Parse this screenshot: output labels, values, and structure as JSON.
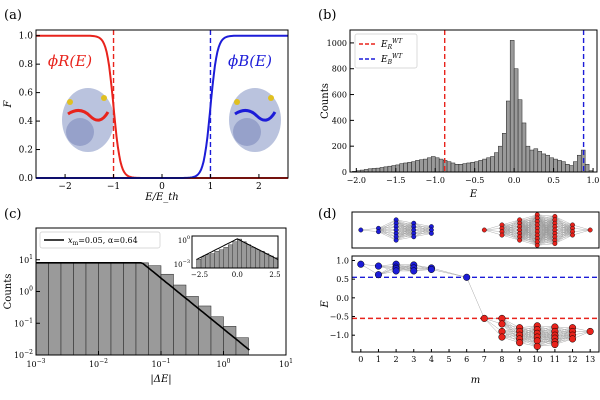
{
  "panel_labels": [
    "(a)",
    "(b)",
    "(c)",
    "(d)"
  ],
  "colors": {
    "red": "#e8231c",
    "blue": "#1c1cd8",
    "bar": "#9a9a9a",
    "mol": "#a9b4d6"
  },
  "chart_data": [
    {
      "id": "a",
      "type": "line",
      "xlabel": "E/E_th",
      "ylabel": "F",
      "xlim": [
        -2.6,
        2.6
      ],
      "ylim": [
        0,
        1.04
      ],
      "xticks": [
        -2,
        -1,
        0,
        1,
        2
      ],
      "yticks": [
        0.0,
        0.2,
        0.4,
        0.6,
        0.8,
        1.0
      ],
      "series": [
        {
          "name": "φ_R(E)",
          "label_text": "ϕR(E)",
          "color": "#e8231c",
          "x_switch": -1,
          "direction": "decreasing",
          "width": 0.07
        },
        {
          "name": "φ_B(E)",
          "label_text": "ϕB(E)",
          "color": "#1c1cd8",
          "x_switch": 1,
          "direction": "increasing",
          "width": 0.07
        }
      ],
      "vlines": [
        {
          "x": -1,
          "color": "#e8231c"
        },
        {
          "x": 1,
          "color": "#1c1cd8"
        }
      ]
    },
    {
      "id": "b",
      "type": "bar",
      "xlabel": "E",
      "ylabel": "Counts",
      "xlim": [
        -2.08,
        1.05
      ],
      "ylim": [
        0,
        1100
      ],
      "xticks": [
        -2.0,
        -1.5,
        -1.0,
        -0.5,
        0.0,
        0.5,
        1.0
      ],
      "yticks": [
        0,
        200,
        400,
        600,
        800,
        1000
      ],
      "bin_width": 0.05,
      "bin_starts": [
        -2.05,
        -2.0,
        -1.95,
        -1.9,
        -1.85,
        -1.8,
        -1.75,
        -1.7,
        -1.65,
        -1.6,
        -1.55,
        -1.5,
        -1.45,
        -1.4,
        -1.35,
        -1.3,
        -1.25,
        -1.2,
        -1.15,
        -1.1,
        -1.05,
        -1.0,
        -0.95,
        -0.9,
        -0.85,
        -0.8,
        -0.75,
        -0.7,
        -0.65,
        -0.6,
        -0.55,
        -0.5,
        -0.45,
        -0.4,
        -0.35,
        -0.3,
        -0.25,
        -0.2,
        -0.15,
        -0.1,
        -0.05,
        0.0,
        0.05,
        0.1,
        0.15,
        0.2,
        0.25,
        0.3,
        0.35,
        0.4,
        0.45,
        0.5,
        0.55,
        0.6,
        0.65,
        0.7,
        0.75,
        0.8,
        0.85,
        0.9,
        0.95
      ],
      "values": [
        5,
        10,
        15,
        20,
        25,
        28,
        30,
        35,
        40,
        45,
        50,
        55,
        65,
        70,
        75,
        80,
        90,
        95,
        100,
        110,
        120,
        110,
        100,
        90,
        80,
        70,
        60,
        60,
        65,
        70,
        75,
        80,
        90,
        100,
        110,
        120,
        150,
        200,
        300,
        550,
        1020,
        800,
        560,
        380,
        200,
        170,
        180,
        160,
        140,
        130,
        110,
        100,
        90,
        80,
        60,
        50,
        80,
        130,
        170,
        60,
        10
      ],
      "vlines": [
        {
          "x": -0.88,
          "color": "#e8231c",
          "label": "E_R^WT"
        },
        {
          "x": 0.88,
          "color": "#1c1cd8",
          "label": "E_B^WT"
        }
      ],
      "legend": {
        "labels": [
          "E",
          "R",
          "WT",
          "E",
          "B",
          "WT"
        ],
        "position": "top-left"
      }
    },
    {
      "id": "c",
      "type": "bar",
      "xlabel": "|ΔE|",
      "ylabel": "Counts",
      "xscale": "log",
      "yscale": "log",
      "xlim": [
        0.001,
        10
      ],
      "ylim": [
        0.01,
        100
      ],
      "xticks": [
        "10^-3",
        "10^-2",
        "10^-1",
        "10^0",
        "10^1"
      ],
      "yticks": [
        "10^-2",
        "10^-1",
        "10^0",
        "10^1"
      ],
      "bin_edges": [
        0.001,
        0.001585,
        0.002512,
        0.003981,
        0.00631,
        0.01,
        0.01585,
        0.02512,
        0.03981,
        0.0631,
        0.1,
        0.1585,
        0.2512,
        0.3981,
        0.631,
        1.0,
        1.585,
        2.512
      ],
      "values": [
        8,
        8,
        8,
        8,
        8,
        8,
        8,
        8,
        8,
        6.5,
        3.5,
        1.6,
        0.7,
        0.35,
        0.16,
        0.08,
        0.035
      ],
      "fit": {
        "xm": 0.05,
        "alpha": 0.64
      },
      "legend": {
        "labels": [
          "x",
          "m",
          "=0.05, α=0.64"
        ],
        "position": "top-left"
      },
      "inset": {
        "type": "bar",
        "xlim": [
          -3.0,
          2.7
        ],
        "xticks": [
          -2.5,
          0.0,
          2.5
        ],
        "yticks": [
          "10^0",
          "10^-3"
        ],
        "bin_starts": [
          -2.7,
          -2.4,
          -2.1,
          -1.8,
          -1.5,
          -1.2,
          -0.9,
          -0.6,
          -0.3,
          0.0,
          0.3,
          0.6,
          0.9,
          1.2,
          1.5,
          1.8,
          2.1,
          2.4
        ],
        "values": [
          0.004,
          0.008,
          0.015,
          0.02,
          0.04,
          0.06,
          0.12,
          0.25,
          0.6,
          1.3,
          0.6,
          0.25,
          0.12,
          0.06,
          0.04,
          0.02,
          0.01,
          0.006
        ]
      }
    },
    {
      "id": "d",
      "type": "scatter",
      "xlabel": "m",
      "ylabel": "E",
      "xlim": [
        -0.5,
        13.5
      ],
      "ylim": [
        -1.45,
        1.12
      ],
      "xticks": [
        0,
        1,
        2,
        3,
        4,
        5,
        6,
        7,
        8,
        9,
        10,
        11,
        12,
        13
      ],
      "yticks": [
        1.0,
        0.5,
        0.0,
        -0.5,
        -1.0
      ],
      "hlines": [
        {
          "y": 0.55,
          "color": "#1c1cd8"
        },
        {
          "y": -0.55,
          "color": "#e8231c"
        }
      ],
      "points": {
        "m": [
          0,
          1,
          1,
          2,
          2,
          2,
          2,
          3,
          3,
          3,
          4,
          4,
          6,
          7,
          8,
          8,
          8,
          8,
          9,
          9,
          9,
          9,
          9,
          10,
          10,
          10,
          10,
          10,
          10,
          11,
          11,
          11,
          11,
          11,
          11,
          12,
          12,
          12,
          12,
          13
        ],
        "E": [
          0.9,
          0.85,
          0.62,
          0.9,
          0.82,
          0.78,
          0.72,
          0.88,
          0.8,
          0.72,
          0.8,
          0.76,
          0.55,
          -0.55,
          -0.55,
          -0.7,
          -0.9,
          -1.05,
          -0.8,
          -0.9,
          -1.0,
          -1.1,
          -1.2,
          -0.75,
          -0.85,
          -0.95,
          -1.05,
          -1.15,
          -1.3,
          -0.78,
          -0.9,
          -1.0,
          -1.08,
          -1.18,
          -1.25,
          -0.8,
          -0.9,
          -1.0,
          -1.1,
          -0.9
        ],
        "group": [
          "B",
          "B",
          "B",
          "B",
          "B",
          "B",
          "B",
          "B",
          "B",
          "B",
          "B",
          "B",
          "B",
          "R",
          "R",
          "R",
          "R",
          "R",
          "R",
          "R",
          "R",
          "R",
          "R",
          "R",
          "R",
          "R",
          "R",
          "R",
          "R",
          "R",
          "R",
          "R",
          "R",
          "R",
          "R",
          "R",
          "R",
          "R",
          "R",
          "R"
        ]
      },
      "top_network": {
        "blue_columns": [
          {
            "m": 0,
            "count": 1
          },
          {
            "m": 1,
            "count": 2
          },
          {
            "m": 2,
            "count": 7
          },
          {
            "m": 3,
            "count": 5
          },
          {
            "m": 4,
            "count": 3
          }
        ],
        "red_columns": [
          {
            "m": 7,
            "count": 1
          },
          {
            "m": 8,
            "count": 4
          },
          {
            "m": 9,
            "count": 7
          },
          {
            "m": 10,
            "count": 10
          },
          {
            "m": 11,
            "count": 9
          },
          {
            "m": 12,
            "count": 4
          },
          {
            "m": 13,
            "count": 1
          }
        ]
      }
    }
  ]
}
